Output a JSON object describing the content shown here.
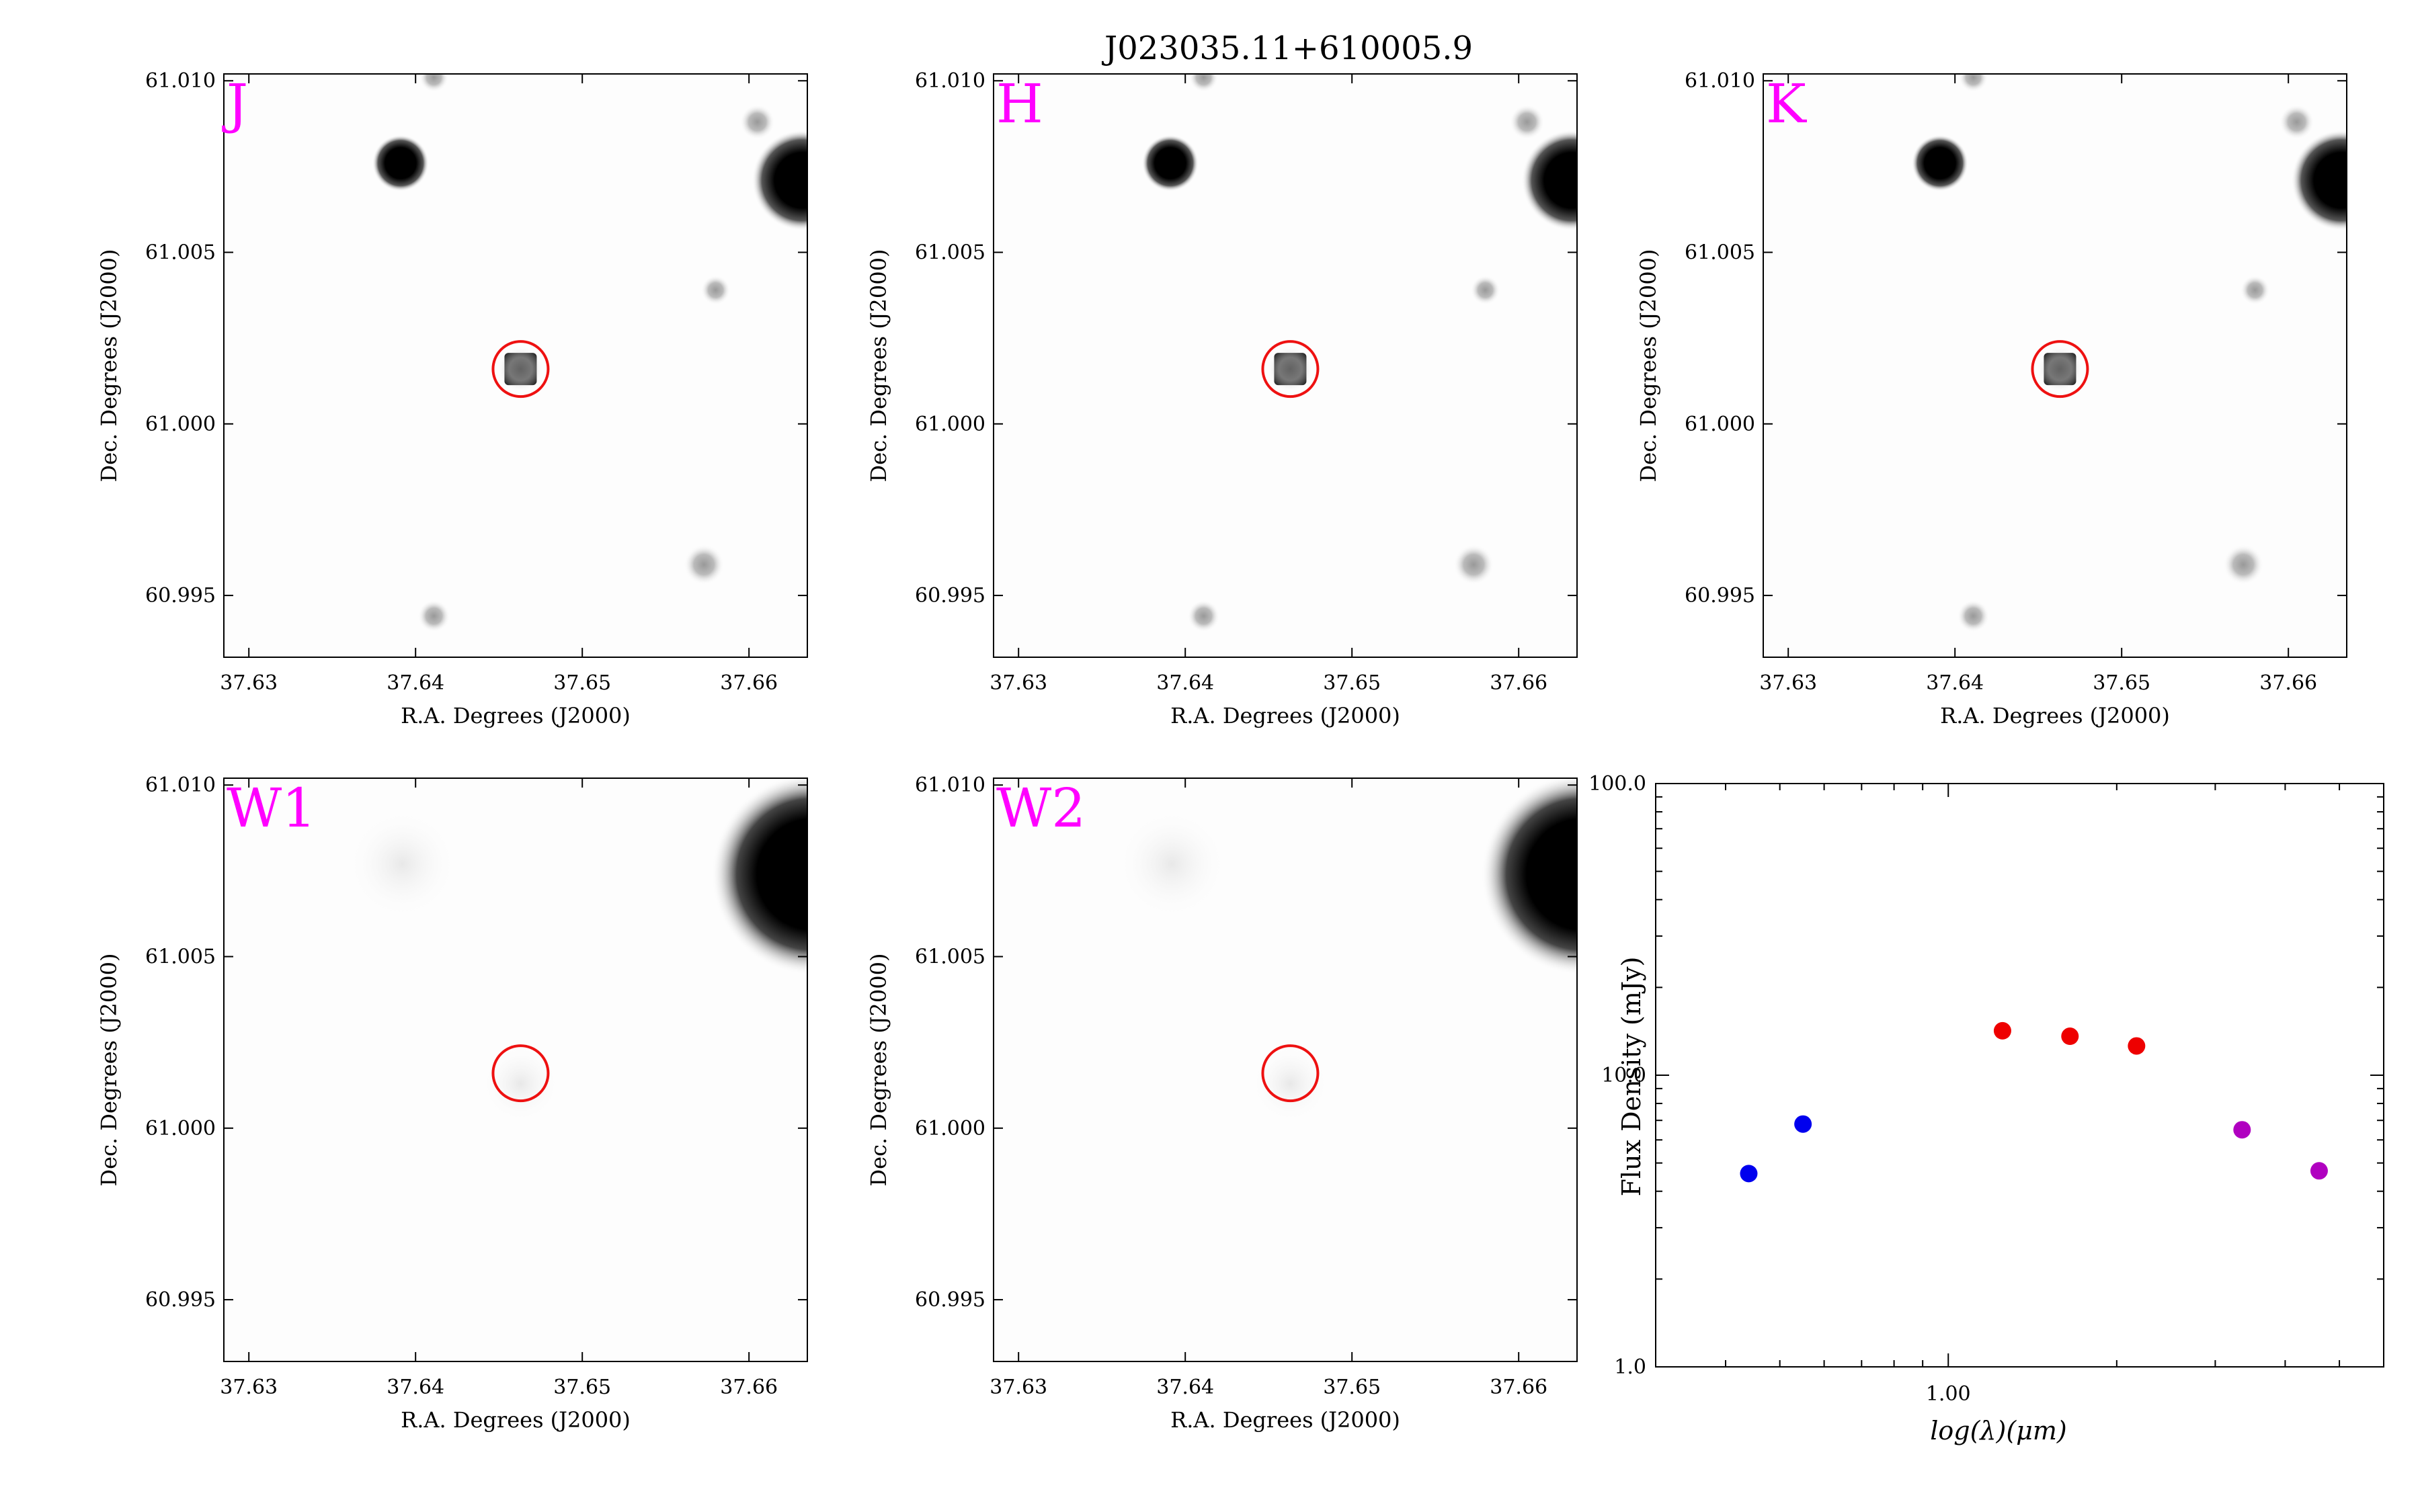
{
  "figure": {
    "title": "J023035.11+610005.9"
  },
  "image_axes": {
    "xlabel": "R.A. Degrees (J2000)",
    "ylabel": "Dec. Degrees (J2000)",
    "xlim": [
      37.6285,
      37.6635
    ],
    "ylim": [
      60.9932,
      61.0102
    ],
    "xticks": [
      "37.63",
      "37.64",
      "37.65",
      "37.66"
    ],
    "yticks": [
      "60.995",
      "61.000",
      "61.005",
      "61.010"
    ],
    "target": {
      "ra": 37.6463,
      "dec": 61.0016
    }
  },
  "panels": [
    {
      "band": "J",
      "target_detected": true
    },
    {
      "band": "H",
      "target_detected": true
    },
    {
      "band": "K",
      "target_detected": true
    },
    {
      "band": "W1",
      "target_detected": false
    },
    {
      "band": "W2",
      "target_detected": false
    }
  ],
  "chart_data": {
    "type": "scatter",
    "title": "",
    "xlabel": "log(λ)(μm)",
    "ylabel": "Flux Density (mJy)",
    "xscale": "log",
    "yscale": "log",
    "xlim": [
      0.3,
      6.0
    ],
    "ylim": [
      1.0,
      100.0
    ],
    "xticks": [
      "1.00"
    ],
    "yticks": [
      "1.0",
      "10.0",
      "100.0"
    ],
    "grid": false,
    "series": [
      {
        "color": "#0000ee",
        "x": [
          0.44,
          0.55
        ],
        "y": [
          4.6,
          6.8
        ]
      },
      {
        "color": "#ee0000",
        "x": [
          1.25,
          1.65,
          2.17
        ],
        "y": [
          14.2,
          13.6,
          12.6
        ]
      },
      {
        "color": "#b000c0",
        "x": [
          3.35,
          4.6
        ],
        "y": [
          6.5,
          4.7
        ]
      }
    ]
  }
}
